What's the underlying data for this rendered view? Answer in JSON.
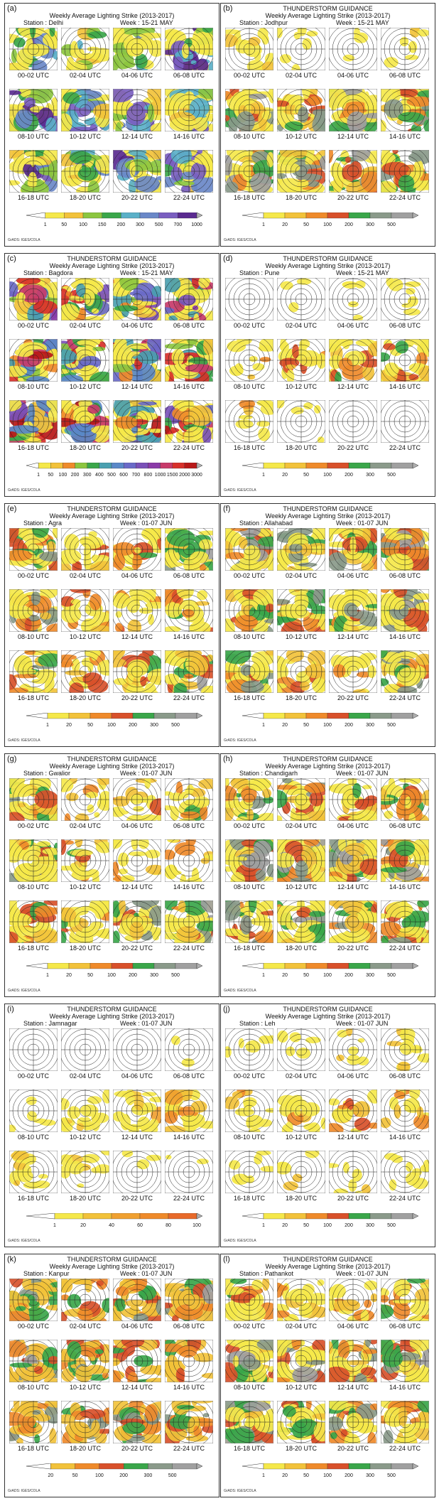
{
  "chart_data": [
    {
      "type": "heatmap",
      "id": "a",
      "panel_label": "(a)",
      "title_lines": [
        "",
        "Weekly Average Lighting Strike (2013-2017)"
      ],
      "station": "Station :  Delhi",
      "week": "Week  :  15-21 MAY",
      "hours": [
        "00-02 UTC",
        "02-04 UTC",
        "04-06 UTC",
        "06-08 UTC",
        "08-10 UTC",
        "10-12 UTC",
        "12-14 UTC",
        "14-16 UTC",
        "16-18 UTC",
        "18-20 UTC",
        "20-22 UTC",
        "22-24 UTC"
      ],
      "colorbar": [
        "1",
        "50",
        "100",
        "150",
        "200",
        "300",
        "500",
        "700",
        "1000"
      ],
      "colorbar_colors": [
        "#f5e84a",
        "#f2c23a",
        "#8cc63f",
        "#3aa64a",
        "#5ab0c8",
        "#6a88c8",
        "#7a5ec0",
        "#5a2a90"
      ],
      "intensity": [
        0.8,
        0.5,
        0.7,
        0.9,
        0.95,
        0.85,
        0.8,
        0.75,
        0.85,
        0.8,
        0.85,
        0.8
      ],
      "credit": "GrADS: IGES/COLA"
    },
    {
      "type": "heatmap",
      "id": "b",
      "panel_label": "(b)",
      "title_lines": [
        "THUNDERSTORM GUIDANCE",
        "Weekly Average Lighting Strike (2013-2017)"
      ],
      "station": "Station :  Jodhpur",
      "week": "Week  :  15-21 MAY",
      "hours": [
        "00-02 UTC",
        "02-04 UTC",
        "04-06 UTC",
        "06-08 UTC",
        "08-10 UTC",
        "10-12 UTC",
        "12-14 UTC",
        "14-16 UTC",
        "16-18 UTC",
        "18-20 UTC",
        "20-22 UTC",
        "22-24 UTC"
      ],
      "colorbar": [
        "1",
        "20",
        "50",
        "100",
        "200",
        "300",
        "500"
      ],
      "colorbar_colors": [
        "#f5e84a",
        "#f2c23a",
        "#ef8a2a",
        "#d8502a",
        "#3aa64a",
        "#8a9a8a",
        "#a0a0a0"
      ],
      "intensity": [
        0.4,
        0.2,
        0.1,
        0.2,
        0.9,
        0.85,
        0.9,
        0.8,
        0.9,
        0.85,
        0.8,
        0.85
      ],
      "credit": "GrADS: IGES/COLA"
    },
    {
      "type": "heatmap",
      "id": "c",
      "panel_label": "(c)",
      "title_lines": [
        "THUNDERSTORM GUIDANCE",
        "Weekly Average Lighting Strike (2013-2017)"
      ],
      "station": "Station :  Bagdora",
      "week": "Week  :  15-21 MAY",
      "hours": [
        "00-02 UTC",
        "02-04 UTC",
        "04-06 UTC",
        "06-08 UTC",
        "08-10 UTC",
        "10-12 UTC",
        "12-14 UTC",
        "14-16 UTC",
        "16-18 UTC",
        "18-20 UTC",
        "20-22 UTC",
        "22-24 UTC"
      ],
      "colorbar": [
        "1",
        "50",
        "100",
        "200",
        "300",
        "400",
        "500",
        "600",
        "700",
        "800",
        "1000",
        "1500",
        "2000",
        "3000"
      ],
      "colorbar_colors": [
        "#f5e84a",
        "#f2c23a",
        "#ef8a2a",
        "#8cc63f",
        "#3aa64a",
        "#4aa0b0",
        "#5a88c8",
        "#6a6ac8",
        "#7a50b8",
        "#8a3aa8",
        "#c83a6a",
        "#d8302a",
        "#b81818"
      ],
      "intensity": [
        0.85,
        0.85,
        0.75,
        0.85,
        0.9,
        0.85,
        0.9,
        0.9,
        1.0,
        1.0,
        0.95,
        0.95
      ],
      "credit": "GrADS: IGES/COLA"
    },
    {
      "type": "heatmap",
      "id": "d",
      "panel_label": "(d)",
      "title_lines": [
        "THUNDERSTORM GUIDANCE",
        "Weekly Average Lighting Strike (2013-2017)"
      ],
      "station": "Station :  Pune",
      "week": "Week  :  15-21 MAY",
      "hours": [
        "00-02 UTC",
        "02-04 UTC",
        "04-06 UTC",
        "06-08 UTC",
        "08-10 UTC",
        "10-12 UTC",
        "12-14 UTC",
        "14-16 UTC",
        "16-18 UTC",
        "18-20 UTC",
        "20-22 UTC",
        "22-24 UTC"
      ],
      "colorbar": [
        "1",
        "20",
        "50",
        "100",
        "200",
        "300",
        "500"
      ],
      "colorbar_colors": [
        "#f5e84a",
        "#f2c23a",
        "#ef8a2a",
        "#d8502a",
        "#3aa64a",
        "#8a9a8a",
        "#a0a0a0"
      ],
      "intensity": [
        0.0,
        0.1,
        0.15,
        0.2,
        0.3,
        0.5,
        0.6,
        0.65,
        0.3,
        0.15,
        0.0,
        0.0
      ],
      "credit": "GrADS: IGES/COLA"
    },
    {
      "type": "heatmap",
      "id": "e",
      "panel_label": "(e)",
      "title_lines": [
        "THUNDERSTORM GUIDANCE",
        "Weekly Average Lighting Strike (2013-2017)"
      ],
      "station": "Station :  Agra",
      "week": "Week  :  01-07 JUN",
      "hours": [
        "00-02 UTC",
        "02-04 UTC",
        "04-06 UTC",
        "06-08 UTC",
        "08-10 UTC",
        "10-12 UTC",
        "12-14 UTC",
        "14-16 UTC",
        "16-18 UTC",
        "18-20 UTC",
        "20-22 UTC",
        "22-24 UTC"
      ],
      "colorbar": [
        "1",
        "20",
        "50",
        "100",
        "200",
        "300",
        "500"
      ],
      "colorbar_colors": [
        "#f5e84a",
        "#f2c23a",
        "#ef8a2a",
        "#d8502a",
        "#3aa64a",
        "#8a9a8a",
        "#a0a0a0"
      ],
      "intensity": [
        0.85,
        0.6,
        0.6,
        0.85,
        0.8,
        0.5,
        0.5,
        0.6,
        0.7,
        0.5,
        0.65,
        0.8
      ],
      "credit": "GrADS: IGES/COLA"
    },
    {
      "type": "heatmap",
      "id": "f",
      "panel_label": "(f)",
      "title_lines": [
        "THUNDERSTORM GUIDANCE",
        "Weekly Average Lighting Strike (2013-2017)"
      ],
      "station": "Station :  Allahabad",
      "week": "Week  :  01-07 JUN",
      "hours": [
        "00-02 UTC",
        "02-04 UTC",
        "04-06 UTC",
        "06-08 UTC",
        "08-10 UTC",
        "10-12 UTC",
        "12-14 UTC",
        "14-16 UTC",
        "16-18 UTC",
        "18-20 UTC",
        "20-22 UTC",
        "22-24 UTC"
      ],
      "colorbar": [
        "1",
        "20",
        "50",
        "100",
        "200",
        "300",
        "500"
      ],
      "colorbar_colors": [
        "#f5e84a",
        "#f2c23a",
        "#ef8a2a",
        "#d8502a",
        "#3aa64a",
        "#8a9a8a",
        "#a0a0a0"
      ],
      "intensity": [
        0.85,
        0.75,
        0.8,
        0.9,
        0.85,
        0.85,
        0.8,
        0.85,
        0.85,
        0.5,
        0.35,
        0.8
      ],
      "credit": "GrADS: IGES/COLA"
    },
    {
      "type": "heatmap",
      "id": "g",
      "panel_label": "(g)",
      "title_lines": [
        "THUNDERSTORM GUIDANCE",
        "Weekly Average Lighting Strike (2013-2017)"
      ],
      "station": "Station :  Gwalior",
      "week": "Week  :  01-07 JUN",
      "hours": [
        "00-02 UTC",
        "02-04 UTC",
        "04-06 UTC",
        "06-08 UTC",
        "08-10 UTC",
        "10-12 UTC",
        "12-14 UTC",
        "14-16 UTC",
        "16-18 UTC",
        "18-20 UTC",
        "20-22 UTC",
        "22-24 UTC"
      ],
      "colorbar": [
        "1",
        "20",
        "50",
        "100",
        "200",
        "300",
        "500"
      ],
      "colorbar_colors": [
        "#f5e84a",
        "#f2c23a",
        "#ef8a2a",
        "#d8502a",
        "#3aa64a",
        "#8a9a8a",
        "#a0a0a0"
      ],
      "intensity": [
        0.7,
        0.4,
        0.5,
        0.6,
        0.85,
        0.6,
        0.4,
        0.4,
        0.75,
        0.7,
        0.8,
        0.85
      ],
      "credit": "GrADS: IGES/COLA"
    },
    {
      "type": "heatmap",
      "id": "h",
      "panel_label": "(h)",
      "title_lines": [
        "THUNDERSTORM GUIDANCE",
        "Weekly Average Lighting Strike (2013-2017)"
      ],
      "station": "Station :  Chandigarh",
      "week": "Week  :  01-07 JUN",
      "hours": [
        "00-02 UTC",
        "02-04 UTC",
        "04-06 UTC",
        "06-08 UTC",
        "08-10 UTC",
        "10-12 UTC",
        "12-14 UTC",
        "14-16 UTC",
        "16-18 UTC",
        "18-20 UTC",
        "20-22 UTC",
        "22-24 UTC"
      ],
      "colorbar": [
        "1",
        "20",
        "50",
        "100",
        "200",
        "300",
        "500"
      ],
      "colorbar_colors": [
        "#f5e84a",
        "#f2c23a",
        "#ef8a2a",
        "#d8502a",
        "#3aa64a",
        "#8a9a8a",
        "#a0a0a0"
      ],
      "intensity": [
        0.7,
        0.7,
        0.6,
        0.7,
        0.9,
        0.9,
        0.95,
        0.9,
        0.85,
        0.8,
        0.75,
        0.8
      ],
      "credit": "GrADS: IGES/COLA"
    },
    {
      "type": "heatmap",
      "id": "i",
      "panel_label": "(i)",
      "title_lines": [
        "THUNDERSTORM GUIDANCE",
        "Weekly Average Lighting Strike (2013-2017)"
      ],
      "station": "Station :  Jamnagar",
      "week": "Week  :  01-07 JUN",
      "hours": [
        "00-02 UTC",
        "02-04 UTC",
        "04-06 UTC",
        "06-08 UTC",
        "08-10 UTC",
        "10-12 UTC",
        "12-14 UTC",
        "14-16 UTC",
        "16-18 UTC",
        "18-20 UTC",
        "20-22 UTC",
        "22-24 UTC"
      ],
      "colorbar": [
        "1",
        "20",
        "40",
        "60",
        "80",
        "100"
      ],
      "colorbar_colors": [
        "#f5e84a",
        "#f2c23a",
        "#f0a030",
        "#ef8a2a",
        "#e86a2a"
      ],
      "intensity": [
        0.0,
        0.0,
        0.0,
        0.05,
        0.15,
        0.45,
        0.5,
        0.6,
        0.35,
        0.3,
        0.1,
        0.05
      ],
      "credit": "GrADS: IGES/COLA"
    },
    {
      "type": "heatmap",
      "id": "j",
      "panel_label": "(j)",
      "title_lines": [
        "THUNDERSTORM GUIDANCE",
        "Weekly Average Lighting Strike (2013-2017)"
      ],
      "station": "Station :  Leh",
      "week": "Week  :  01-07 JUN",
      "hours": [
        "00-02 UTC",
        "02-04 UTC",
        "04-06 UTC",
        "06-08 UTC",
        "08-10 UTC",
        "10-12 UTC",
        "12-14 UTC",
        "14-16 UTC",
        "16-18 UTC",
        "18-20 UTC",
        "20-22 UTC",
        "22-24 UTC"
      ],
      "colorbar": [
        "1",
        "20",
        "50",
        "100",
        "200",
        "300",
        "500"
      ],
      "colorbar_colors": [
        "#f5e84a",
        "#f2c23a",
        "#ef8a2a",
        "#d8502a",
        "#3aa64a",
        "#8a9a8a",
        "#a0a0a0"
      ],
      "intensity": [
        0.15,
        0.15,
        0.2,
        0.3,
        0.35,
        0.4,
        0.45,
        0.35,
        0.2,
        0.15,
        0.2,
        0.25
      ],
      "credit": "GrADS: IGES/COLA"
    },
    {
      "type": "heatmap",
      "id": "k",
      "panel_label": "(k)",
      "title_lines": [
        "THUNDERSTORM GUIDANCE",
        "Weekly Average Lighting Strike (2013-2017)"
      ],
      "station": "Station :  Kanpur",
      "week": "Week  :  01-07 JUN",
      "hours": [
        "00-02 UTC",
        "02-04 UTC",
        "04-06 UTC",
        "06-08 UTC",
        "08-10 UTC",
        "10-12 UTC",
        "12-14 UTC",
        "14-16 UTC",
        "16-18 UTC",
        "18-20 UTC",
        "20-22 UTC",
        "22-24 UTC"
      ],
      "colorbar": [
        "20",
        "50",
        "100",
        "200",
        "300",
        "500"
      ],
      "colorbar_colors": [
        "#f2c23a",
        "#ef8a2a",
        "#d8502a",
        "#3aa64a",
        "#8a9a8a",
        "#a0a0a0"
      ],
      "intensity": [
        0.8,
        0.6,
        0.7,
        0.85,
        0.85,
        0.7,
        0.6,
        0.6,
        0.75,
        0.7,
        0.8,
        0.8
      ],
      "credit": "GrADS: IGES/COLA"
    },
    {
      "type": "heatmap",
      "id": "l",
      "panel_label": "(l)",
      "title_lines": [
        "THUNDERSTORM GUIDANCE",
        "Weekly Average Lighting Strike (2013-2017)"
      ],
      "station": "Station :  Pathankot",
      "week": "Week  :  01-07 JUN",
      "hours": [
        "00-02 UTC",
        "02-04 UTC",
        "04-06 UTC",
        "06-08 UTC",
        "08-10 UTC",
        "10-12 UTC",
        "12-14 UTC",
        "14-16 UTC",
        "16-18 UTC",
        "18-20 UTC",
        "20-22 UTC",
        "22-24 UTC"
      ],
      "colorbar": [
        "1",
        "20",
        "50",
        "100",
        "200",
        "300",
        "500"
      ],
      "colorbar_colors": [
        "#f5e84a",
        "#f2c23a",
        "#ef8a2a",
        "#d8502a",
        "#3aa64a",
        "#8a9a8a",
        "#a0a0a0"
      ],
      "intensity": [
        0.65,
        0.55,
        0.4,
        0.6,
        0.9,
        0.9,
        0.9,
        0.85,
        0.9,
        0.75,
        0.7,
        0.75
      ],
      "credit": "GrADS: IGES/COLA"
    }
  ]
}
